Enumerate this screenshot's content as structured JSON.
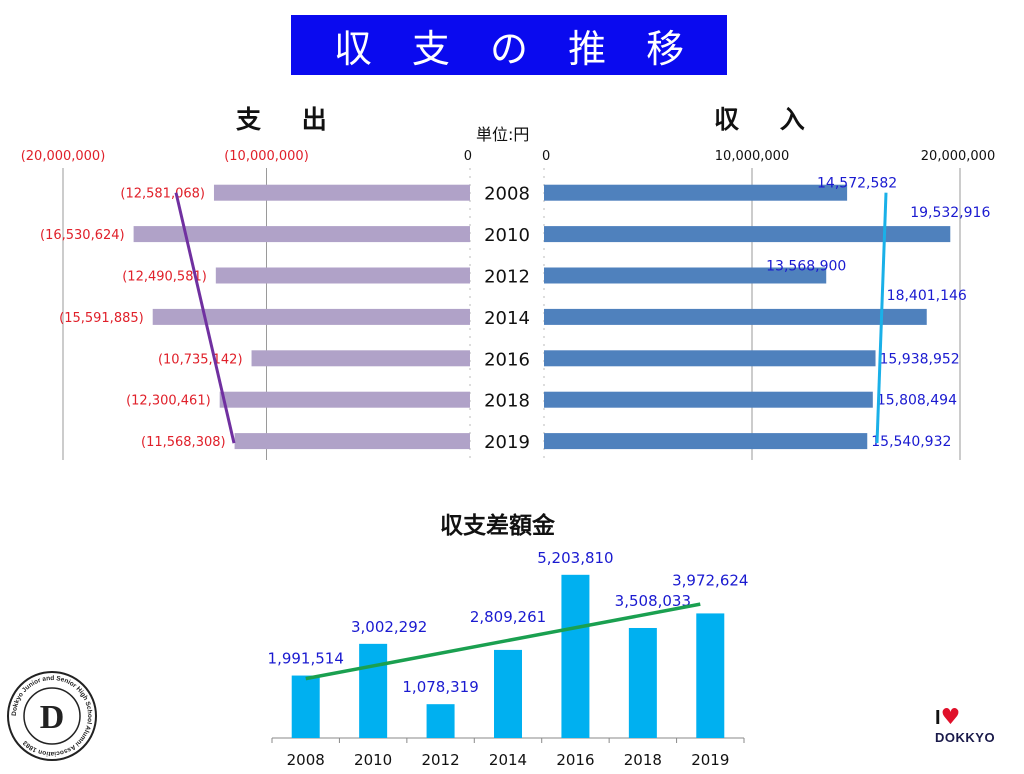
{
  "title": "収 支 の 推 移",
  "unit_label": "単位:円",
  "colors": {
    "banner": "#0a0aef",
    "expense_bar": "#b0a2c8",
    "income_bar": "#4f81bd",
    "diff_bar": "#00b0f0",
    "expense_label": "#e0202a",
    "income_label": "#1a1ad0",
    "expense_trend": "#7030a0",
    "income_trend": "#1ab0e8",
    "diff_trend": "#1aa050"
  },
  "logos": {
    "left_text": "Dokkyo Junior and Senior High School Alumni Association 1883",
    "right_love": "I",
    "right_brand": "DOKKYO"
  },
  "chart_data": [
    {
      "type": "bar",
      "orientation": "horizontal",
      "title": "支 出",
      "categories": [
        "2008",
        "2010",
        "2012",
        "2014",
        "2016",
        "2018",
        "2019"
      ],
      "values": [
        12581068,
        16530624,
        12490581,
        15591885,
        10735142,
        12300461,
        11568308
      ],
      "data_labels": [
        "(12,581,068)",
        "(16,530,624)",
        "(12,490,581)",
        "(15,591,885)",
        "(10,735,142)",
        "(12,300,461)",
        "(11,568,308)"
      ],
      "xlim": [
        0,
        20000000
      ],
      "axis_reversed": true,
      "tick_values": [
        20000000,
        10000000,
        0
      ],
      "tick_labels": [
        "(20,000,000)",
        "(10,000,000)",
        "0"
      ],
      "trendline": true
    },
    {
      "type": "bar",
      "orientation": "horizontal",
      "title": "収 入",
      "categories": [
        "2008",
        "2010",
        "2012",
        "2014",
        "2016",
        "2018",
        "2019"
      ],
      "values": [
        14572582,
        19532916,
        13568900,
        18401146,
        15938952,
        15808494,
        15540932
      ],
      "data_labels": [
        "14,572,582",
        "19,532,916",
        "13,568,900",
        "18,401,146",
        "15,938,952",
        "15,808,494",
        "15,540,932"
      ],
      "xlim": [
        0,
        20000000
      ],
      "tick_values": [
        0,
        10000000,
        20000000
      ],
      "tick_labels": [
        "0",
        "10,000,000",
        "20,000,000"
      ],
      "trendline": true
    },
    {
      "type": "bar",
      "orientation": "vertical",
      "title": "収支差額金",
      "categories": [
        "2008",
        "2010",
        "2012",
        "2014",
        "2016",
        "2018",
        "2019"
      ],
      "values": [
        1991514,
        3002292,
        1078319,
        2809261,
        5203810,
        3508033,
        3972624
      ],
      "data_labels": [
        "1,991,514",
        "3,002,292",
        "1,078,319",
        "2,809,261",
        "5,203,810",
        "3,508,033",
        "3,972,624"
      ],
      "ylim": [
        0,
        5500000
      ],
      "trendline": true
    }
  ]
}
